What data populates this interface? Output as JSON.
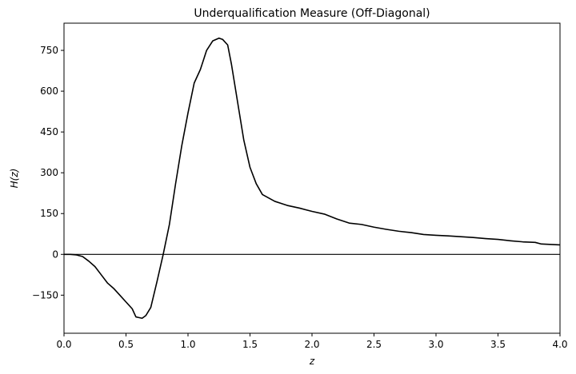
{
  "chart_data": {
    "type": "line",
    "title": "Underqualification Measure (Off-Diagonal)",
    "xlabel": "z",
    "ylabel": "H(z)",
    "xlim": [
      0,
      4.0
    ],
    "ylim": [
      -290,
      850
    ],
    "x_ticks": [
      "0.0",
      "0.5",
      "1.0",
      "1.5",
      "2.0",
      "2.5",
      "3.0",
      "3.5",
      "4.0"
    ],
    "y_ticks": [
      "−150",
      "0",
      "150",
      "300",
      "450",
      "600",
      "750"
    ],
    "x_tick_values": [
      0,
      0.5,
      1.0,
      1.5,
      2.0,
      2.5,
      3.0,
      3.5,
      4.0
    ],
    "y_tick_values": [
      -150,
      0,
      150,
      300,
      450,
      600,
      750
    ],
    "grid": false,
    "reference_line": 0,
    "line_color": "#000000",
    "series": [
      {
        "x": [
          0,
          0.05,
          0.1,
          0.15,
          0.2,
          0.25,
          0.3,
          0.35,
          0.4,
          0.45,
          0.5,
          0.55,
          0.58,
          0.6,
          0.63,
          0.66,
          0.7,
          0.75,
          0.8,
          0.85,
          0.9,
          0.95,
          1.0,
          1.05,
          1.1,
          1.15,
          1.2,
          1.25,
          1.28,
          1.32,
          1.35,
          1.4,
          1.45,
          1.5,
          1.55,
          1.6,
          1.7,
          1.8,
          1.9,
          2.0,
          2.1,
          2.2,
          2.3,
          2.4,
          2.5,
          2.6,
          2.7,
          2.8,
          2.9,
          3.0,
          3.1,
          3.2,
          3.3,
          3.4,
          3.5,
          3.6,
          3.7,
          3.8,
          3.85,
          3.9,
          4.0
        ],
        "y": [
          0,
          0,
          -2,
          -8,
          -25,
          -45,
          -75,
          -105,
          -125,
          -150,
          -175,
          -200,
          -230,
          -232,
          -235,
          -225,
          -195,
          -100,
          0,
          110,
          260,
          400,
          520,
          630,
          680,
          750,
          785,
          795,
          790,
          770,
          700,
          560,
          420,
          320,
          260,
          220,
          195,
          180,
          170,
          158,
          148,
          130,
          115,
          110,
          100,
          92,
          85,
          80,
          73,
          70,
          68,
          65,
          62,
          58,
          55,
          50,
          46,
          44,
          38,
          37,
          35
        ]
      }
    ]
  }
}
